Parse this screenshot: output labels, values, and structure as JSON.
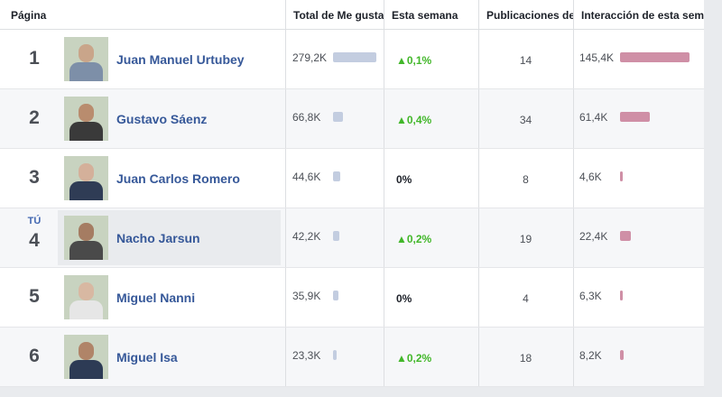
{
  "header": {
    "columns": [
      "Página",
      "Total de Me gusta",
      "Esta semana",
      "Publicaciones de",
      "Interacción de esta semana"
    ]
  },
  "you_label": "TÚ",
  "rows": [
    {
      "rank": "1",
      "name": "Juan Manuel Urtubey",
      "likes": {
        "value": 279200,
        "label": "279,2K"
      },
      "change": "▲0,1%",
      "posts": "14",
      "engagement": {
        "value": 145400,
        "label": "145,4K"
      }
    },
    {
      "rank": "2",
      "name": "Gustavo Sáenz",
      "likes": {
        "value": 66800,
        "label": "66,8K"
      },
      "change": "▲0,4%",
      "posts": "34",
      "engagement": {
        "value": 61400,
        "label": "61,4K"
      }
    },
    {
      "rank": "3",
      "name": "Juan Carlos Romero",
      "likes": {
        "value": 44600,
        "label": "44,6K"
      },
      "change": "0%",
      "posts": "8",
      "engagement": {
        "value": 4600,
        "label": "4,6K"
      }
    },
    {
      "rank": "4",
      "name": "Nacho Jarsun",
      "you": true,
      "likes": {
        "value": 42200,
        "label": "42,2K"
      },
      "change": "▲0,2%",
      "posts": "19",
      "engagement": {
        "value": 22400,
        "label": "22,4K"
      }
    },
    {
      "rank": "5",
      "name": "Miguel Nanni",
      "likes": {
        "value": 35900,
        "label": "35,9K"
      },
      "change": "0%",
      "posts": "4",
      "engagement": {
        "value": 6300,
        "label": "6,3K"
      }
    },
    {
      "rank": "6",
      "name": "Miguel Isa",
      "likes": {
        "value": 23300,
        "label": "23,3K"
      },
      "change": "▲0,2%",
      "posts": "18",
      "engagement": {
        "value": 8200,
        "label": "8,2K"
      }
    }
  ]
}
